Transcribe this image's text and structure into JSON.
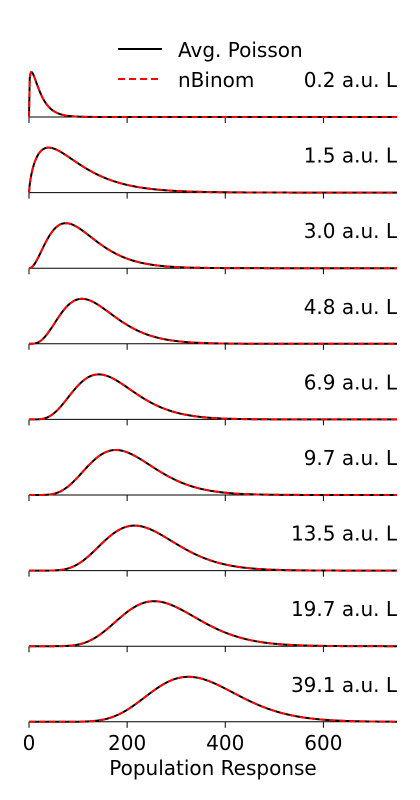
{
  "chart_data": {
    "type": "line",
    "xlabel": "Population Response",
    "xlim": [
      0,
      750
    ],
    "x_ticks": [
      0,
      200,
      400,
      600
    ],
    "x_tick_labels": [
      "0",
      "200",
      "400",
      "600"
    ],
    "grid": false,
    "legend": {
      "placement": "top",
      "entries": [
        {
          "label": "Avg. Poisson",
          "color": "#000000",
          "style": "solid"
        },
        {
          "label": "nBinom",
          "color": "#ff0000",
          "style": "dashed"
        }
      ]
    },
    "series": [
      {
        "name": "Avg. Poisson",
        "color": "#000000"
      },
      {
        "name": "nBinom",
        "color": "#ff0000"
      }
    ],
    "panels": [
      {
        "label": "0.2 a.u. L",
        "mode": 5,
        "relative_peak_height": 1.0
      },
      {
        "label": "1.5 a.u. L",
        "mode": 40,
        "relative_peak_height": 1.0
      },
      {
        "label": "3.0 a.u. L",
        "mode": 75,
        "relative_peak_height": 1.0
      },
      {
        "label": "4.8 a.u. L",
        "mode": 108,
        "relative_peak_height": 1.0
      },
      {
        "label": "6.9 a.u. L",
        "mode": 142,
        "relative_peak_height": 1.0
      },
      {
        "label": "9.7 a.u. L",
        "mode": 177,
        "relative_peak_height": 1.0
      },
      {
        "label": "13.5 a.u. L",
        "mode": 215,
        "relative_peak_height": 1.0
      },
      {
        "label": "19.7 a.u. L",
        "mode": 255,
        "relative_peak_height": 1.0
      },
      {
        "label": "39.1 a.u. L",
        "mode": 325,
        "relative_peak_height": 1.0
      }
    ]
  }
}
